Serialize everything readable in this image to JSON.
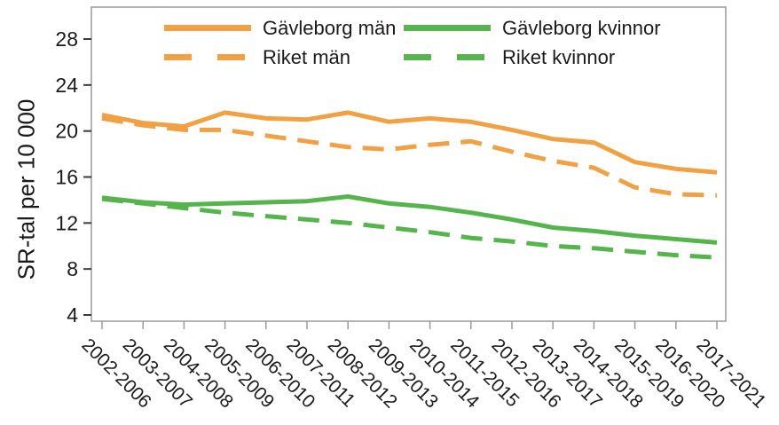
{
  "chart_data": {
    "type": "line",
    "ylabel": "SR-tal per 10 000",
    "xlabel": "",
    "yticks": [
      4,
      8,
      12,
      16,
      20,
      24,
      28
    ],
    "ylim": [
      3.5,
      30.8
    ],
    "grid": false,
    "legend_position": "top-inside-two-columns",
    "frame_color": "#9a9a9a",
    "text_color": "#1a1a1a",
    "categories": [
      "2002-2006",
      "2003-2007",
      "2004-2008",
      "2005-2009",
      "2006-2010",
      "2007-2011",
      "2008-2012",
      "2009-2013",
      "2010-2014",
      "2011-2015",
      "2012-2016",
      "2013-2017",
      "2014-2018",
      "2015-2019",
      "2016-2020",
      "2017-2021"
    ],
    "series": [
      {
        "name": "Gävleborg män",
        "color": "#F0A143",
        "style": "solid",
        "values": [
          21.4,
          20.7,
          20.4,
          21.6,
          21.1,
          21.0,
          21.6,
          20.8,
          21.1,
          20.8,
          20.1,
          19.3,
          19.0,
          17.3,
          16.7,
          16.4
        ]
      },
      {
        "name": "Riket män",
        "color": "#F0A143",
        "style": "dashed",
        "values": [
          21.1,
          20.5,
          20.1,
          20.1,
          19.6,
          19.1,
          18.6,
          18.4,
          18.8,
          19.1,
          18.2,
          17.4,
          16.8,
          15.1,
          14.5,
          14.4
        ]
      },
      {
        "name": "Gävleborg kvinnor",
        "color": "#56B44D",
        "style": "solid",
        "values": [
          14.2,
          13.8,
          13.6,
          13.7,
          13.8,
          13.9,
          14.3,
          13.7,
          13.4,
          12.9,
          12.3,
          11.6,
          11.3,
          10.9,
          10.6,
          10.3
        ]
      },
      {
        "name": "Riket kvinnor",
        "color": "#56B44D",
        "style": "dashed",
        "values": [
          14.1,
          13.7,
          13.3,
          12.9,
          12.6,
          12.3,
          12.0,
          11.6,
          11.2,
          10.7,
          10.4,
          10.0,
          9.8,
          9.5,
          9.2,
          9.0
        ]
      }
    ]
  }
}
